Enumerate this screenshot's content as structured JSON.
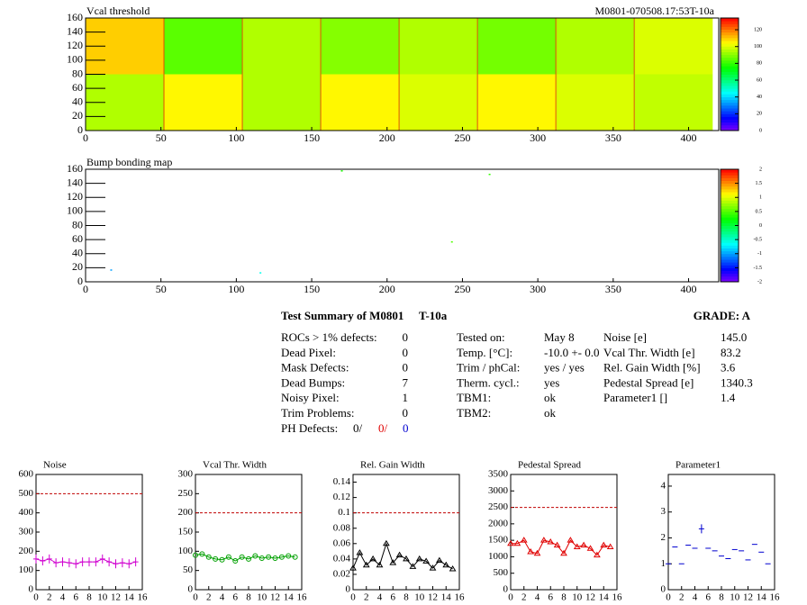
{
  "chart_data": [
    {
      "type": "heatmap",
      "title": "Vcal threshold",
      "label": "M0801-070508.17:53T-10a",
      "x_bins": [
        0,
        52,
        104,
        156,
        208,
        260,
        312,
        364,
        416
      ],
      "y_bins": [
        0,
        80,
        160
      ],
      "values": [
        [
          95,
          105,
          95,
          105,
          100,
          105,
          100,
          97
        ],
        [
          110,
          85,
          95,
          90,
          95,
          88,
          95,
          100
        ]
      ],
      "xlim": [
        0,
        420
      ],
      "ylim": [
        0,
        160
      ],
      "xticks": [
        0,
        50,
        100,
        150,
        200,
        250,
        300,
        350,
        400
      ],
      "yticks": [
        0,
        20,
        40,
        60,
        80,
        100,
        120,
        140,
        160
      ],
      "zlim": [
        0,
        134
      ],
      "zticks": [
        0,
        20,
        40,
        60,
        80,
        100,
        120
      ]
    },
    {
      "type": "scatter",
      "title": "Bump bonding map",
      "x": [
        17,
        116,
        170,
        243,
        268
      ],
      "y": [
        17,
        13,
        158,
        57,
        153
      ],
      "values": [
        -1,
        -0.6,
        0.3,
        0.5,
        0.4
      ],
      "xlim": [
        0,
        420
      ],
      "ylim": [
        0,
        160
      ],
      "xticks": [
        0,
        50,
        100,
        150,
        200,
        250,
        300,
        350,
        400
      ],
      "yticks": [
        0,
        20,
        40,
        60,
        80,
        100,
        120,
        140,
        160
      ],
      "zlim": [
        -2,
        2
      ],
      "zticks": [
        -2,
        -1.5,
        -1,
        -0.5,
        0,
        0.5,
        1,
        1.5,
        2
      ]
    },
    {
      "type": "line",
      "title": "Noise",
      "color": "#d000d0",
      "marker": "plus",
      "limit": 500,
      "limit_color": "#c00000",
      "x": [
        0,
        1,
        2,
        3,
        4,
        5,
        6,
        7,
        8,
        9,
        10,
        11,
        12,
        13,
        14,
        15
      ],
      "values": [
        160,
        150,
        160,
        140,
        145,
        140,
        135,
        145,
        145,
        145,
        160,
        145,
        135,
        140,
        135,
        145
      ],
      "xlim": [
        0,
        16
      ],
      "ylim": [
        0,
        600
      ],
      "xticks": [
        0,
        2,
        4,
        6,
        8,
        10,
        12,
        14,
        16
      ],
      "yticks": [
        0,
        100,
        200,
        300,
        400,
        500,
        600
      ]
    },
    {
      "type": "line",
      "title": "Vcal Thr. Width",
      "color": "#00a000",
      "marker": "circle",
      "limit": 200,
      "limit_color": "#c00000",
      "x": [
        0,
        1,
        2,
        3,
        4,
        5,
        6,
        7,
        8,
        9,
        10,
        11,
        12,
        13,
        14,
        15
      ],
      "values": [
        90,
        93,
        85,
        80,
        78,
        85,
        75,
        85,
        80,
        88,
        82,
        85,
        82,
        85,
        88,
        85
      ],
      "xlim": [
        0,
        16
      ],
      "ylim": [
        0,
        300
      ],
      "xticks": [
        0,
        2,
        4,
        6,
        8,
        10,
        12,
        14,
        16
      ],
      "yticks": [
        0,
        50,
        100,
        150,
        200,
        250,
        300
      ]
    },
    {
      "type": "line",
      "title": "Rel. Gain Width",
      "color": "#000000",
      "marker": "triangle",
      "limit": 0.1,
      "limit_color": "#c00000",
      "x": [
        0,
        1,
        2,
        3,
        4,
        5,
        6,
        7,
        8,
        9,
        10,
        11,
        12,
        13,
        14,
        15
      ],
      "values": [
        0.028,
        0.048,
        0.032,
        0.04,
        0.032,
        0.06,
        0.035,
        0.045,
        0.04,
        0.03,
        0.04,
        0.037,
        0.028,
        0.038,
        0.032,
        0.027
      ],
      "xlim": [
        0,
        16
      ],
      "ylim": [
        0,
        0.15
      ],
      "xticks": [
        0,
        2,
        4,
        6,
        8,
        10,
        12,
        14,
        16
      ],
      "yticks": [
        0,
        0.02,
        0.04,
        0.06,
        0.08,
        0.1,
        0.12,
        0.14
      ]
    },
    {
      "type": "line",
      "title": "Pedestal Spread",
      "color": "#e00000",
      "marker": "triangle",
      "limit": 2500,
      "limit_color": "#c00000",
      "x": [
        0,
        1,
        2,
        3,
        4,
        5,
        6,
        7,
        8,
        9,
        10,
        11,
        12,
        13,
        14,
        15
      ],
      "values": [
        1400,
        1400,
        1500,
        1150,
        1100,
        1500,
        1450,
        1350,
        1100,
        1500,
        1300,
        1350,
        1250,
        1050,
        1350,
        1300
      ],
      "xlim": [
        0,
        16
      ],
      "ylim": [
        0,
        3500
      ],
      "xticks": [
        0,
        2,
        4,
        6,
        8,
        10,
        12,
        14,
        16
      ],
      "yticks": [
        0,
        500,
        1000,
        1500,
        2000,
        2500,
        3000,
        3500
      ]
    },
    {
      "type": "markers",
      "title": "Parameter1",
      "color": "#0000d0",
      "marker": "dash",
      "x": [
        0,
        1,
        2,
        3,
        4,
        5,
        6,
        7,
        8,
        9,
        10,
        11,
        12,
        13,
        14,
        15
      ],
      "values": [
        1,
        1.65,
        1,
        1.72,
        1.6,
        2.35,
        1.6,
        1.5,
        1.3,
        1.2,
        1.55,
        1.5,
        1.15,
        1.75,
        1.45,
        1
      ],
      "xlim": [
        0,
        16
      ],
      "ylim": [
        0,
        4.45
      ],
      "xticks": [
        0,
        2,
        4,
        6,
        8,
        10,
        12,
        14,
        16
      ],
      "yticks": [
        0,
        1,
        2,
        3,
        4
      ]
    }
  ],
  "summary": {
    "title": "Test Summary of M0801",
    "tag": "T-10a",
    "grade": "GRADE:  A",
    "left": [
      [
        "ROCs > 1% defects:",
        "0"
      ],
      [
        "Dead Pixel:",
        "0"
      ],
      [
        "Mask Defects:",
        "0"
      ],
      [
        "Dead Bumps:",
        "7"
      ],
      [
        "Noisy Pixel:",
        "1"
      ],
      [
        "Trim Problems:",
        "0"
      ]
    ],
    "ph_label": "PH Defects:",
    "ph_values": [
      "0/",
      "0/",
      "0"
    ],
    "ph_colors": [
      "#000000",
      "#e00000",
      "#0000d0"
    ],
    "middle": [
      [
        "Tested on:",
        "May 8"
      ],
      [
        "Temp. [°C]:",
        "-10.0 +- 0.0"
      ],
      [
        "Trim / phCal:",
        "yes / yes"
      ],
      [
        "Therm. cycl.:",
        "yes"
      ],
      [
        "TBM1:",
        "ok"
      ],
      [
        "TBM2:",
        "ok"
      ]
    ],
    "right": [
      [
        "Noise [e]",
        "145.0"
      ],
      [
        "Vcal Thr. Width [e]",
        "83.2"
      ],
      [
        "Rel. Gain Width [%]",
        "3.6"
      ],
      [
        "Pedestal Spread [e]",
        "1340.3"
      ],
      [
        "Parameter1 []",
        "1.4"
      ]
    ]
  }
}
